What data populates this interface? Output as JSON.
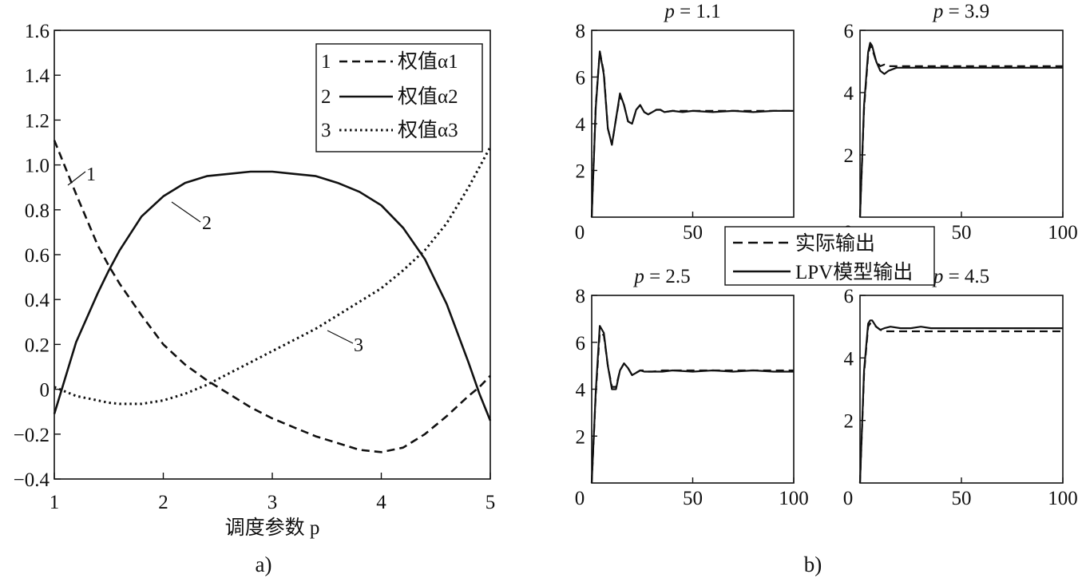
{
  "figure": {
    "caption_a": "a)",
    "caption_b": "b)"
  },
  "chart_data": [
    {
      "type": "line",
      "panel": "a",
      "xlabel": "调度参数 p",
      "ylabel": "",
      "xlim": [
        1,
        5
      ],
      "ylim": [
        -0.4,
        1.6
      ],
      "x_ticks": [
        "1",
        "2",
        "3",
        "4",
        "5"
      ],
      "y_ticks": [
        "1.6",
        "1.4",
        "1.2",
        "1.0",
        "0.8",
        "0.6",
        "0.4",
        "0.2",
        "0",
        "−0.2",
        "−0.4"
      ],
      "legend_position": "top-right",
      "x": [
        1.0,
        1.2,
        1.4,
        1.5,
        1.6,
        1.8,
        2.0,
        2.2,
        2.4,
        2.6,
        2.8,
        3.0,
        3.2,
        3.4,
        3.6,
        3.8,
        4.0,
        4.2,
        4.4,
        4.6,
        4.8,
        4.9,
        5.0
      ],
      "series": [
        {
          "label": "1",
          "name": "权值α1",
          "style": "dashed",
          "values": [
            1.11,
            0.87,
            0.64,
            0.55,
            0.47,
            0.33,
            0.2,
            0.11,
            0.04,
            -0.02,
            -0.08,
            -0.13,
            -0.17,
            -0.21,
            -0.24,
            -0.27,
            -0.28,
            -0.26,
            -0.2,
            -0.12,
            -0.03,
            0.01,
            0.06
          ]
        },
        {
          "label": "2",
          "name": "权值α2",
          "style": "solid",
          "values": [
            -0.11,
            0.21,
            0.43,
            0.53,
            0.62,
            0.77,
            0.86,
            0.92,
            0.95,
            0.96,
            0.97,
            0.97,
            0.96,
            0.95,
            0.92,
            0.88,
            0.82,
            0.72,
            0.58,
            0.38,
            0.12,
            -0.02,
            -0.14
          ]
        },
        {
          "label": "3",
          "name": "权值α3",
          "style": "dotted",
          "values": [
            0.01,
            -0.03,
            -0.05,
            -0.06,
            -0.065,
            -0.065,
            -0.05,
            -0.02,
            0.02,
            0.07,
            0.12,
            0.17,
            0.22,
            0.27,
            0.33,
            0.39,
            0.45,
            0.53,
            0.62,
            0.74,
            0.9,
            0.99,
            1.08
          ]
        }
      ]
    },
    {
      "type": "line",
      "panel": "b",
      "legend_position": "center",
      "legend": [
        {
          "name": "实际输出",
          "style": "dashed"
        },
        {
          "name": "LPV模型输出",
          "style": "solid"
        }
      ],
      "subplots": [
        {
          "title": "p = 1.1",
          "xlim": [
            0,
            100
          ],
          "ylim": [
            0,
            8
          ],
          "x_ticks": [
            "0",
            "50"
          ],
          "y_ticks": [
            "8",
            "6",
            "4",
            "2"
          ],
          "x": [
            0,
            2,
            4,
            6,
            8,
            10,
            12,
            14,
            16,
            18,
            20,
            22,
            24,
            26,
            28,
            30,
            32,
            34,
            36,
            40,
            45,
            50,
            60,
            70,
            80,
            90,
            100
          ],
          "series": [
            {
              "name": "实际输出",
              "values": [
                0,
                4.8,
                7.1,
                6.2,
                3.8,
                3.1,
                4.2,
                5.2,
                4.8,
                4.1,
                4.0,
                4.6,
                4.8,
                4.5,
                4.4,
                4.5,
                4.6,
                4.6,
                4.5,
                4.55,
                4.55,
                4.55,
                4.55,
                4.55,
                4.55,
                4.55,
                4.55
              ]
            },
            {
              "name": "LPV模型输出",
              "values": [
                0,
                4.7,
                7.1,
                6.1,
                3.8,
                3.1,
                4.2,
                5.3,
                4.8,
                4.1,
                4.0,
                4.6,
                4.8,
                4.5,
                4.4,
                4.5,
                4.6,
                4.6,
                4.5,
                4.55,
                4.5,
                4.55,
                4.5,
                4.55,
                4.5,
                4.55,
                4.55
              ]
            }
          ]
        },
        {
          "title": "p = 3.9",
          "xlim": [
            0,
            100
          ],
          "ylim": [
            0,
            6
          ],
          "x_ticks": [
            "0",
            "50",
            "100"
          ],
          "y_ticks": [
            "6",
            "4",
            "2"
          ],
          "x": [
            0,
            2,
            4,
            5,
            6,
            8,
            10,
            12,
            14,
            16,
            18,
            20,
            25,
            30,
            40,
            50,
            60,
            70,
            80,
            90,
            100
          ],
          "series": [
            {
              "name": "实际输出",
              "values": [
                0,
                3.5,
                5.2,
                5.5,
                5.4,
                5.0,
                4.85,
                4.9,
                4.85,
                4.85,
                4.85,
                4.85,
                4.85,
                4.85,
                4.85,
                4.85,
                4.85,
                4.85,
                4.85,
                4.85,
                4.85
              ]
            },
            {
              "name": "LPV模型输出",
              "values": [
                0,
                3.6,
                5.3,
                5.6,
                5.5,
                5.0,
                4.7,
                4.6,
                4.7,
                4.75,
                4.8,
                4.8,
                4.8,
                4.8,
                4.8,
                4.8,
                4.8,
                4.8,
                4.8,
                4.8,
                4.8
              ]
            }
          ]
        },
        {
          "title": "p = 2.5",
          "xlim": [
            0,
            100
          ],
          "ylim": [
            0,
            8
          ],
          "x_ticks": [
            "0",
            "50",
            "100"
          ],
          "y_ticks": [
            "8",
            "6",
            "4",
            "2"
          ],
          "x": [
            0,
            2,
            4,
            6,
            8,
            10,
            12,
            14,
            16,
            18,
            20,
            22,
            24,
            26,
            28,
            30,
            35,
            40,
            50,
            60,
            70,
            80,
            90,
            100
          ],
          "series": [
            {
              "name": "实际输出",
              "values": [
                0,
                3.8,
                6.4,
                6.3,
                5.0,
                4.1,
                4.1,
                4.8,
                5.1,
                4.9,
                4.6,
                4.7,
                4.8,
                4.8,
                4.75,
                4.75,
                4.8,
                4.8,
                4.8,
                4.8,
                4.8,
                4.8,
                4.8,
                4.8
              ]
            },
            {
              "name": "LPV模型输出",
              "values": [
                0,
                3.9,
                6.7,
                6.4,
                5.0,
                4.0,
                4.0,
                4.8,
                5.1,
                4.9,
                4.6,
                4.7,
                4.8,
                4.75,
                4.75,
                4.75,
                4.75,
                4.8,
                4.75,
                4.8,
                4.75,
                4.8,
                4.75,
                4.75
              ]
            }
          ]
        },
        {
          "title": "p = 4.5",
          "xlim": [
            0,
            100
          ],
          "ylim": [
            0,
            6
          ],
          "x_ticks": [
            "0",
            "50",
            "100"
          ],
          "y_ticks": [
            "6",
            "4",
            "2"
          ],
          "x": [
            0,
            2,
            4,
            5,
            6,
            8,
            10,
            12,
            15,
            20,
            25,
            30,
            35,
            40,
            50,
            60,
            70,
            80,
            90,
            100
          ],
          "series": [
            {
              "name": "实际输出",
              "values": [
                0,
                3.5,
                5.0,
                5.1,
                5.1,
                5.0,
                4.9,
                4.85,
                4.85,
                4.85,
                4.85,
                4.85,
                4.85,
                4.85,
                4.85,
                4.85,
                4.85,
                4.85,
                4.85,
                4.85
              ]
            },
            {
              "name": "LPV模型输出",
              "values": [
                0,
                3.6,
                5.1,
                5.2,
                5.2,
                5.0,
                4.9,
                4.95,
                5.0,
                4.95,
                4.95,
                5.0,
                4.95,
                4.95,
                4.95,
                4.95,
                4.95,
                4.95,
                4.95,
                4.95
              ]
            }
          ]
        }
      ]
    }
  ]
}
